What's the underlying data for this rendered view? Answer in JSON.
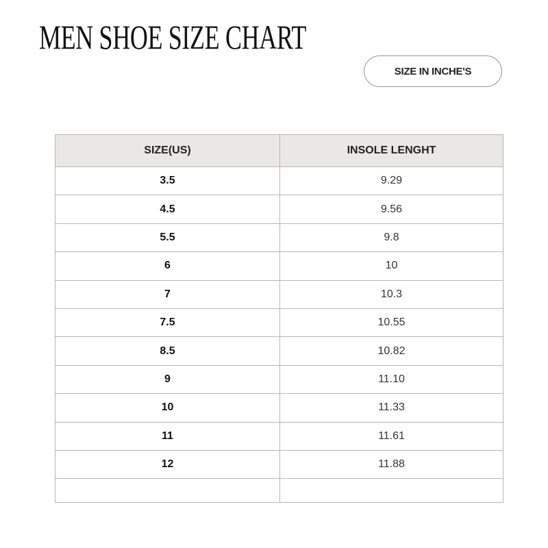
{
  "title": "MEN SHOE SIZE CHART",
  "unit_button": "SIZE IN INCHE'S",
  "table": {
    "headers": [
      "SIZE(US)",
      "INSOLE LENGHT"
    ],
    "rows": [
      {
        "size": "3.5",
        "insole": "9.29"
      },
      {
        "size": "4.5",
        "insole": "9.56"
      },
      {
        "size": "5.5",
        "insole": "9.8"
      },
      {
        "size": "6",
        "insole": "10"
      },
      {
        "size": "7",
        "insole": "10.3"
      },
      {
        "size": "7.5",
        "insole": "10.55"
      },
      {
        "size": "8.5",
        "insole": "10.82"
      },
      {
        "size": "9",
        "insole": "11.10"
      },
      {
        "size": "10",
        "insole": "11.33"
      },
      {
        "size": "11",
        "insole": "11.61"
      },
      {
        "size": "12",
        "insole": "11.88"
      }
    ]
  }
}
